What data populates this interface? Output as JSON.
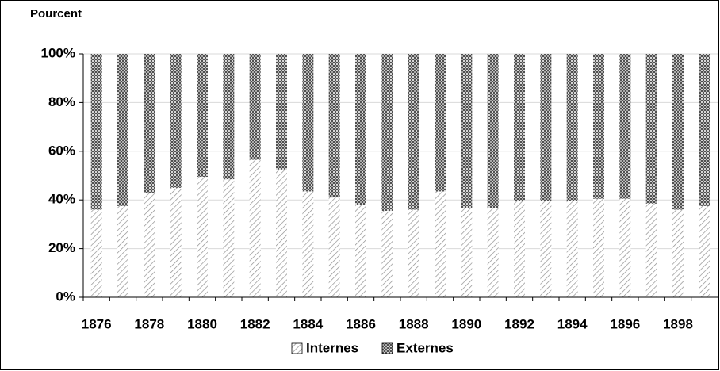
{
  "chart_data": {
    "type": "stacked_bar",
    "y_label": "Pourcent",
    "categories": [
      "1876",
      null,
      "1878",
      null,
      "1880",
      null,
      "1882",
      null,
      "1884",
      null,
      "1886",
      null,
      "1888",
      null,
      "1890",
      null,
      "1892",
      null,
      "1894",
      null,
      "1896",
      null,
      "1898",
      null
    ],
    "series": [
      {
        "name": "Internes",
        "color": "#909090",
        "values": [
          36,
          37.5,
          43,
          45,
          49.5,
          48.5,
          56.5,
          52.5,
          43.5,
          41,
          38,
          35.5,
          36,
          43.5,
          36.5,
          36.5,
          39.5,
          39.5,
          39.5,
          40.5,
          40.5,
          38.5,
          36,
          37.5
        ]
      },
      {
        "name": "Externes",
        "color": "#505050",
        "values": [
          64,
          62.5,
          57,
          55,
          50.5,
          51.5,
          43.5,
          47.5,
          56.5,
          59,
          62,
          64.5,
          64,
          56.5,
          63.5,
          63.5,
          60.5,
          60.5,
          60.5,
          59.5,
          59.5,
          61.5,
          64,
          62.5
        ]
      }
    ],
    "ylim": [
      0,
      100
    ],
    "yticks": [
      {
        "value": 0,
        "label": "0%"
      },
      {
        "value": 20,
        "label": "20%"
      },
      {
        "value": 40,
        "label": "40%"
      },
      {
        "value": 60,
        "label": "60%"
      },
      {
        "value": 80,
        "label": "80%"
      },
      {
        "value": 100,
        "label": "100%"
      }
    ],
    "grid": true,
    "legend": "bottom"
  }
}
